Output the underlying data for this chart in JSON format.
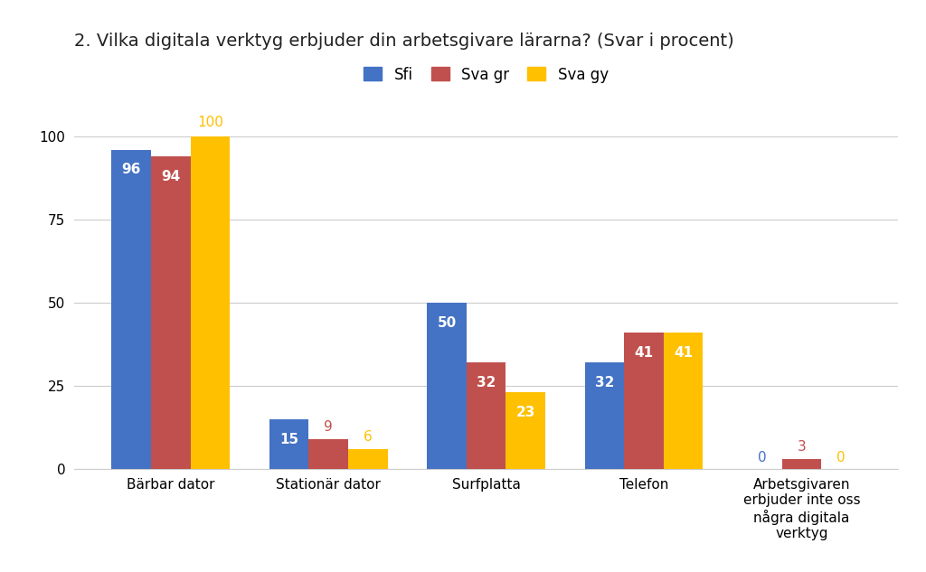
{
  "title": "2. Vilka digitala verktyg erbjuder din arbetsgivare lärarna? (Svar i procent)",
  "categories": [
    "Bärbar dator",
    "Stationär dator",
    "Surfplatta",
    "Telefon",
    "Arbetsgivaren\nerbjuder inte oss\nnågra digitala\nverktyg"
  ],
  "series": {
    "Sfi": [
      96,
      15,
      50,
      32,
      0
    ],
    "Sva gr": [
      94,
      9,
      32,
      41,
      3
    ],
    "Sva gy": [
      100,
      6,
      23,
      41,
      0
    ]
  },
  "colors": {
    "Sfi": "#4472C4",
    "Sva gr": "#C0504D",
    "Sva gy": "#FFC000"
  },
  "ylim": [
    0,
    110
  ],
  "yticks": [
    0,
    25,
    50,
    75,
    100
  ],
  "bar_width": 0.25,
  "background_color": "#ffffff",
  "label_fontsize": 11,
  "title_fontsize": 14,
  "legend_fontsize": 12,
  "grid_color": "#cccccc"
}
